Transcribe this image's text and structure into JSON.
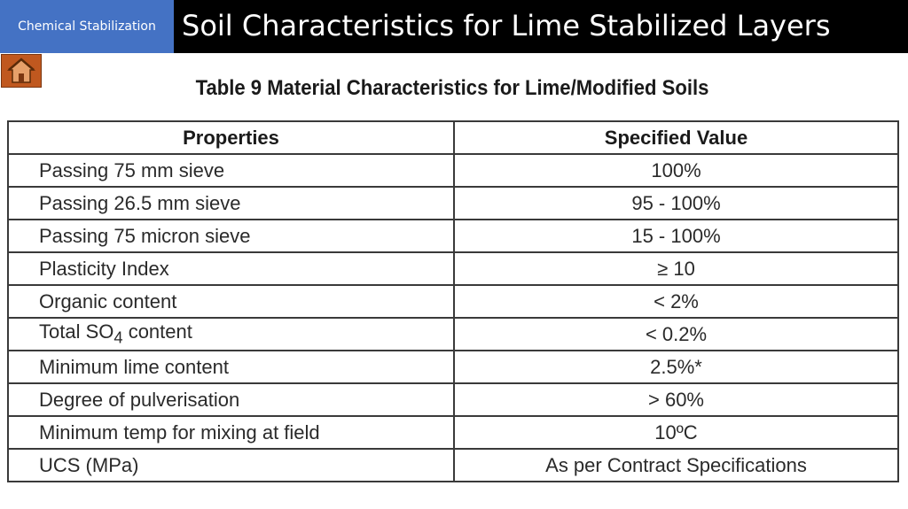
{
  "header": {
    "section_label": "Chemical Stabilization",
    "title": "Soil Characteristics for Lime Stabilized Layers"
  },
  "home_icon": "home-icon",
  "colors": {
    "header_bg": "#000000",
    "section_tag_bg": "#4472c4",
    "home_button_bg": "#c0581f"
  },
  "table": {
    "caption": "Table 9  Material Characteristics for Lime/Modified Soils",
    "columns": [
      "Properties",
      "Specified Value"
    ],
    "rows": [
      {
        "property": "Passing 75 mm sieve",
        "value": "100%"
      },
      {
        "property": "Passing 26.5 mm sieve",
        "value": "95 - 100%"
      },
      {
        "property": "Passing 75 micron sieve",
        "value": "15 - 100%"
      },
      {
        "property": "Plasticity Index",
        "value": "≥ 10"
      },
      {
        "property": "Organic content",
        "value": "< 2%"
      },
      {
        "property": "Total SO4 content",
        "property_sub": "4",
        "property_pre": "Total SO",
        "property_post": " content",
        "value": "< 0.2%"
      },
      {
        "property": "Minimum lime content",
        "value": "2.5%*"
      },
      {
        "property": "Degree of pulverisation",
        "value": "> 60%"
      },
      {
        "property": "Minimum temp for mixing at field",
        "value": "10ºC"
      },
      {
        "property": "UCS (MPa)",
        "value": "As per Contract Specifications"
      }
    ]
  }
}
